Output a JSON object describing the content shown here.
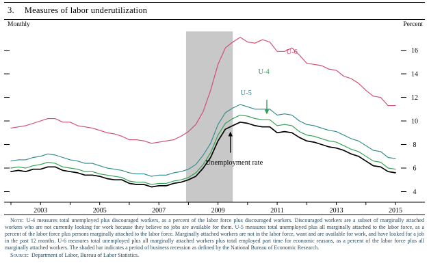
{
  "page": {
    "figure_number": "3.",
    "title": "Measures of labor underutilization",
    "left_caption": "Monthly",
    "right_caption": "Percent",
    "note_label": "Note:",
    "note_text": "U-4 measures total unemployed plus discouraged workers, as a percent of the labor force plus discouraged workers. Discouraged workers are a subset of marginally attached workers who are not currently looking for work because they believe no jobs are available for them. U-5 measures total unemployed plus all marginally attached to the labor force, as a percent of the labor force plus persons marginally attached to the labor force. Marginally attached workers are not in the labor force, want and are available for work, and have looked for a job in the past 12 months. U-6 measures total unemployed plus all marginally attached workers plus total employed part time for economic reasons, as a percent of the labor force plus all marginally attached workers. The shaded bar indicates a period of business recession as defined by the National Bureau of Economic Research.",
    "source_label": "Source:",
    "source_text": "Department of Labor, Bureau of Labor Statistics."
  },
  "chart_data": {
    "type": "line",
    "title": "Measures of labor underutilization",
    "frequency_label": "Monthly",
    "unit_label": "Percent",
    "xlim": [
      2002,
      2015.3
    ],
    "ylim": [
      3.1,
      17.6
    ],
    "yticks": [
      4,
      6,
      8,
      10,
      12,
      14,
      16
    ],
    "xticks": [
      2003,
      2005,
      2007,
      2009,
      2011,
      2013,
      2015
    ],
    "gridlines": false,
    "tick_label_side": "right",
    "recession_band": {
      "start": 2007.92,
      "end": 2009.5,
      "color": "#c8c8c8"
    },
    "x": [
      2002.0,
      2002.25,
      2002.5,
      2002.75,
      2003.0,
      2003.25,
      2003.5,
      2003.75,
      2004.0,
      2004.25,
      2004.5,
      2004.75,
      2005.0,
      2005.25,
      2005.5,
      2005.75,
      2006.0,
      2006.25,
      2006.5,
      2006.75,
      2007.0,
      2007.25,
      2007.5,
      2007.75,
      2008.0,
      2008.25,
      2008.5,
      2008.75,
      2009.0,
      2009.25,
      2009.5,
      2009.75,
      2010.0,
      2010.25,
      2010.5,
      2010.75,
      2011.0,
      2011.25,
      2011.5,
      2011.75,
      2012.0,
      2012.25,
      2012.5,
      2012.75,
      2013.0,
      2013.25,
      2013.5,
      2013.75,
      2014.0,
      2014.25,
      2014.5,
      2014.75,
      2015.0
    ],
    "series": [
      {
        "name": "U-6",
        "color": "#d14b6d",
        "width": 1.15,
        "values": [
          9.4,
          9.5,
          9.6,
          9.8,
          10.0,
          10.2,
          10.2,
          9.9,
          9.9,
          9.6,
          9.5,
          9.4,
          9.2,
          9.0,
          8.9,
          8.7,
          8.4,
          8.4,
          8.3,
          8.1,
          8.2,
          8.3,
          8.4,
          8.7,
          9.1,
          9.7,
          10.8,
          12.6,
          14.8,
          16.2,
          16.7,
          17.1,
          16.7,
          16.6,
          16.9,
          16.7,
          15.9,
          15.9,
          16.2,
          15.6,
          14.9,
          14.8,
          14.7,
          14.4,
          14.3,
          13.8,
          13.6,
          13.2,
          12.6,
          12.1,
          12.0,
          11.3,
          11.3
        ]
      },
      {
        "name": "U-5",
        "color": "#2e8b8b",
        "width": 1.15,
        "values": [
          6.6,
          6.7,
          6.7,
          6.9,
          7.0,
          7.2,
          7.1,
          6.9,
          6.7,
          6.6,
          6.4,
          6.4,
          6.2,
          6.0,
          5.9,
          5.8,
          5.6,
          5.5,
          5.5,
          5.3,
          5.4,
          5.4,
          5.6,
          5.7,
          5.9,
          6.3,
          7.1,
          8.1,
          9.7,
          10.7,
          11.1,
          11.4,
          11.2,
          11.0,
          11.0,
          11.0,
          10.5,
          10.6,
          10.5,
          10.0,
          9.7,
          9.6,
          9.4,
          9.2,
          9.1,
          8.8,
          8.5,
          8.3,
          7.9,
          7.5,
          7.4,
          6.9,
          6.8
        ]
      },
      {
        "name": "U-4",
        "color": "#2da04f",
        "width": 1.15,
        "values": [
          6.0,
          6.1,
          6.0,
          6.2,
          6.3,
          6.5,
          6.4,
          6.1,
          6.0,
          5.9,
          5.7,
          5.7,
          5.5,
          5.4,
          5.3,
          5.2,
          4.9,
          4.8,
          4.8,
          4.6,
          4.7,
          4.7,
          4.9,
          5.0,
          5.2,
          5.6,
          6.3,
          7.3,
          8.8,
          9.8,
          10.2,
          10.5,
          10.4,
          10.2,
          10.1,
          10.1,
          9.6,
          9.7,
          9.6,
          9.1,
          8.8,
          8.7,
          8.5,
          8.3,
          8.2,
          7.9,
          7.6,
          7.4,
          7.0,
          6.6,
          6.5,
          6.0,
          5.9
        ]
      },
      {
        "name": "Unemployment rate",
        "color": "#000000",
        "width": 1.7,
        "values": [
          5.7,
          5.8,
          5.7,
          5.9,
          5.9,
          6.1,
          6.1,
          5.8,
          5.7,
          5.6,
          5.4,
          5.4,
          5.3,
          5.1,
          5.0,
          5.0,
          4.7,
          4.6,
          4.6,
          4.4,
          4.5,
          4.5,
          4.7,
          4.8,
          5.0,
          5.3,
          6.0,
          6.9,
          8.3,
          9.3,
          9.6,
          9.9,
          9.8,
          9.6,
          9.5,
          9.5,
          9.0,
          9.1,
          9.0,
          8.6,
          8.3,
          8.2,
          8.0,
          7.8,
          7.7,
          7.5,
          7.2,
          7.0,
          6.6,
          6.2,
          6.1,
          5.7,
          5.6
        ]
      }
    ],
    "annotations": [
      {
        "text": "U-6",
        "x": 2011.5,
        "y": 15.9,
        "color": "#d14b6d"
      },
      {
        "text": "U-4",
        "x": 2010.55,
        "y": 14.2,
        "color": "#2da04f",
        "arrow": {
          "x": 2010.65,
          "from": 11.8,
          "to": 10.55
        }
      },
      {
        "text": "U-5",
        "x": 2009.95,
        "y": 12.4,
        "color": "#2e8b8b"
      },
      {
        "text": "Unemployment rate",
        "x": 2009.55,
        "y": 6.5,
        "color": "#000000",
        "arrow": {
          "x": 2009.42,
          "from": 7.3,
          "to": 9.1
        }
      }
    ]
  }
}
